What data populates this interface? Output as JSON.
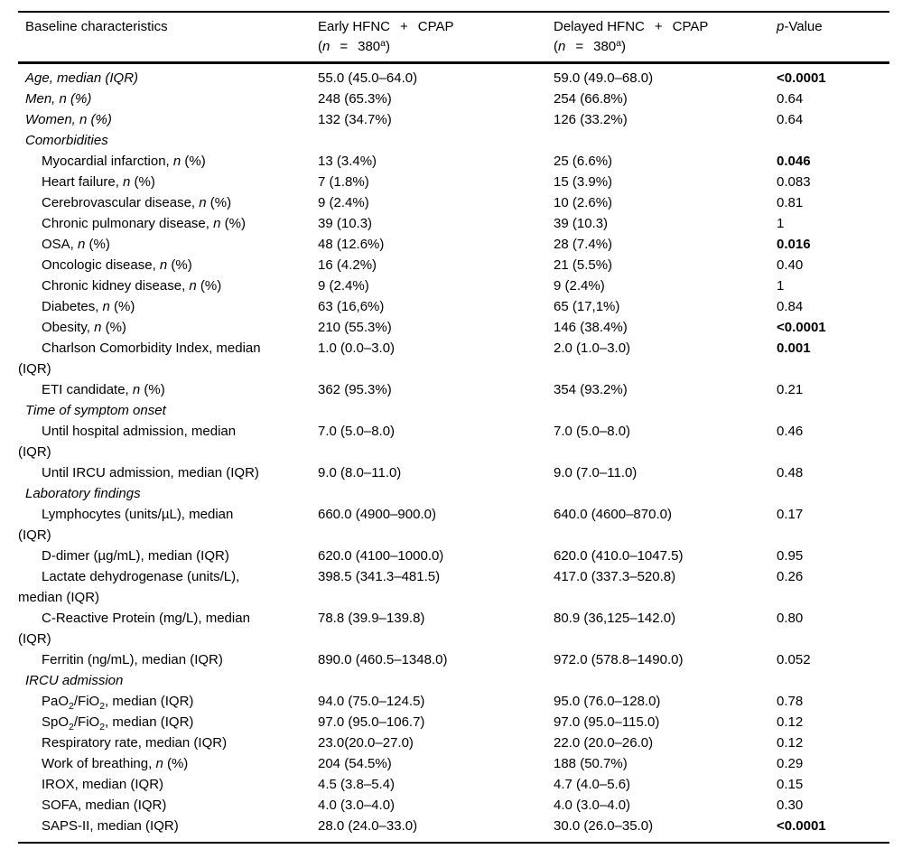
{
  "table": {
    "header": {
      "col1": "Baseline characteristics",
      "col2": {
        "line1": [
          [
            "Early HFNC",
            "r"
          ],
          [
            "+",
            "pad"
          ],
          [
            "CPAP",
            "r"
          ]
        ],
        "line2": [
          [
            "(",
            "r"
          ],
          [
            "n",
            "i"
          ],
          [
            "=",
            "pad"
          ],
          [
            "380",
            "r"
          ],
          [
            "a",
            "sup"
          ],
          [
            ")",
            "r"
          ]
        ]
      },
      "col3": {
        "line1": [
          [
            "Delayed HFNC",
            "r"
          ],
          [
            "+",
            "pad"
          ],
          [
            "CPAP",
            "r"
          ]
        ],
        "line2": [
          [
            "(",
            "r"
          ],
          [
            "n",
            "i"
          ],
          [
            "=",
            "pad"
          ],
          [
            "380",
            "r"
          ],
          [
            "a",
            "sup"
          ],
          [
            ")",
            "r"
          ]
        ]
      },
      "col4": [
        [
          "p",
          "i"
        ],
        [
          "-Value",
          "r"
        ]
      ]
    },
    "rows": [
      {
        "kind": "data",
        "indent": false,
        "label": [
          [
            "Age, median (IQR)",
            "i"
          ]
        ],
        "early": "55.0 (45.0–64.0)",
        "delayed": "59.0 (49.0–68.0)",
        "p": "<0.0001",
        "p_bold": true
      },
      {
        "kind": "data",
        "indent": false,
        "label": [
          [
            "Men, n (%)",
            "i"
          ]
        ],
        "early": "248 (65.3%)",
        "delayed": "254 (66.8%)",
        "p": "0.64",
        "p_bold": false
      },
      {
        "kind": "data",
        "indent": false,
        "label": [
          [
            "Women, n (%)",
            "i"
          ]
        ],
        "early": "132 (34.7%)",
        "delayed": "126 (33.2%)",
        "p": "0.64",
        "p_bold": false
      },
      {
        "kind": "section",
        "label": [
          [
            "Comorbidities",
            "i"
          ]
        ]
      },
      {
        "kind": "data",
        "indent": true,
        "label": [
          [
            "Myocardial infarction, ",
            "r"
          ],
          [
            "n",
            "i"
          ],
          [
            " (%)",
            "r"
          ]
        ],
        "early": "13 (3.4%)",
        "delayed": "25 (6.6%)",
        "p": "0.046",
        "p_bold": true
      },
      {
        "kind": "data",
        "indent": true,
        "label": [
          [
            "Heart failure, ",
            "r"
          ],
          [
            "n",
            "i"
          ],
          [
            " (%)",
            "r"
          ]
        ],
        "early": "7 (1.8%)",
        "delayed": "15 (3.9%)",
        "p": "0.083",
        "p_bold": false
      },
      {
        "kind": "data",
        "indent": true,
        "label": [
          [
            "Cerebrovascular disease, ",
            "r"
          ],
          [
            "n",
            "i"
          ],
          [
            " (%)",
            "r"
          ]
        ],
        "early": "9 (2.4%)",
        "delayed": "10 (2.6%)",
        "p": "0.81",
        "p_bold": false
      },
      {
        "kind": "data",
        "indent": true,
        "label": [
          [
            "Chronic pulmonary disease, ",
            "r"
          ],
          [
            "n",
            "i"
          ],
          [
            " (%)",
            "r"
          ]
        ],
        "early": "39 (10.3)",
        "delayed": "39 (10.3)",
        "p": "1",
        "p_bold": false
      },
      {
        "kind": "data",
        "indent": true,
        "label": [
          [
            "OSA, ",
            "r"
          ],
          [
            "n",
            "i"
          ],
          [
            " (%)",
            "r"
          ]
        ],
        "early": "48 (12.6%)",
        "delayed": "28 (7.4%)",
        "p": "0.016",
        "p_bold": true
      },
      {
        "kind": "data",
        "indent": true,
        "label": [
          [
            "Oncologic disease, ",
            "r"
          ],
          [
            "n",
            "i"
          ],
          [
            " (%)",
            "r"
          ]
        ],
        "early": "16 (4.2%)",
        "delayed": "21 (5.5%)",
        "p": "0.40",
        "p_bold": false
      },
      {
        "kind": "data",
        "indent": true,
        "label": [
          [
            "Chronic kidney disease, ",
            "r"
          ],
          [
            "n",
            "i"
          ],
          [
            " (%)",
            "r"
          ]
        ],
        "early": "9 (2.4%)",
        "delayed": "9 (2.4%)",
        "p": "1",
        "p_bold": false
      },
      {
        "kind": "data",
        "indent": true,
        "label": [
          [
            "Diabetes, ",
            "r"
          ],
          [
            "n",
            "i"
          ],
          [
            " (%)",
            "r"
          ]
        ],
        "early": "63 (16,6%)",
        "delayed": "65 (17,1%)",
        "p": "0.84",
        "p_bold": false
      },
      {
        "kind": "data",
        "indent": true,
        "label": [
          [
            "Obesity, ",
            "r"
          ],
          [
            "n",
            "i"
          ],
          [
            " (%)",
            "r"
          ]
        ],
        "early": "210 (55.3%)",
        "delayed": "146 (38.4%)",
        "p": "<0.0001",
        "p_bold": true
      },
      {
        "kind": "data",
        "indent": true,
        "label": [
          [
            "Charlson Comorbidity Index, median",
            "r"
          ],
          [
            "",
            "br"
          ],
          [
            "(IQR)",
            "r"
          ]
        ],
        "early": "1.0 (0.0–3.0)",
        "delayed": "2.0 (1.0–3.0)",
        "p": "0.001",
        "p_bold": true
      },
      {
        "kind": "data",
        "indent": true,
        "label": [
          [
            "ETI candidate, ",
            "r"
          ],
          [
            "n",
            "i"
          ],
          [
            " (%)",
            "r"
          ]
        ],
        "early": "362 (95.3%)",
        "delayed": "354 (93.2%)",
        "p": "0.21",
        "p_bold": false
      },
      {
        "kind": "section",
        "label": [
          [
            "Time of symptom onset",
            "i"
          ]
        ]
      },
      {
        "kind": "data",
        "indent": true,
        "label": [
          [
            "Until hospital admission, median",
            "r"
          ],
          [
            "",
            "br"
          ],
          [
            "(IQR)",
            "r"
          ]
        ],
        "early": "7.0 (5.0–8.0)",
        "delayed": "7.0 (5.0–8.0)",
        "p": "0.46",
        "p_bold": false
      },
      {
        "kind": "data",
        "indent": true,
        "label": [
          [
            "Until IRCU admission, median (IQR)",
            "r"
          ]
        ],
        "early": "9.0 (8.0–11.0)",
        "delayed": "9.0 (7.0–11.0)",
        "p": "0.48",
        "p_bold": false
      },
      {
        "kind": "section",
        "label": [
          [
            "Laboratory findings",
            "i"
          ]
        ]
      },
      {
        "kind": "data",
        "indent": true,
        "label": [
          [
            "Lymphocytes (units/µL), median",
            "r"
          ],
          [
            "",
            "br"
          ],
          [
            "(IQR)",
            "r"
          ]
        ],
        "early": "660.0 (4900–900.0)",
        "delayed": "640.0 (4600–870.0)",
        "p": "0.17",
        "p_bold": false
      },
      {
        "kind": "data",
        "indent": true,
        "label": [
          [
            "D-dimer (µg/mL), median (IQR)",
            "r"
          ]
        ],
        "early": "620.0 (4100–1000.0)",
        "delayed": "620.0 (410.0–1047.5)",
        "p": "0.95",
        "p_bold": false
      },
      {
        "kind": "data",
        "indent": true,
        "label": [
          [
            "Lactate dehydrogenase (units/L),",
            "r"
          ],
          [
            "",
            "br"
          ],
          [
            "median (IQR)",
            "r"
          ]
        ],
        "early": "398.5 (341.3–481.5)",
        "delayed": "417.0 (337.3–520.8)",
        "p": "0.26",
        "p_bold": false
      },
      {
        "kind": "data",
        "indent": true,
        "label": [
          [
            "C-Reactive Protein (mg/L), median",
            "r"
          ],
          [
            "",
            "br"
          ],
          [
            "(IQR)",
            "r"
          ]
        ],
        "early": "78.8 (39.9–139.8)",
        "delayed": "80.9 (36,125–142.0)",
        "p": "0.80",
        "p_bold": false
      },
      {
        "kind": "data",
        "indent": true,
        "label": [
          [
            "Ferritin (ng/mL), median (IQR)",
            "r"
          ]
        ],
        "early": "890.0 (460.5–1348.0)",
        "delayed": "972.0 (578.8–1490.0)",
        "p": "0.052",
        "p_bold": false
      },
      {
        "kind": "section",
        "label": [
          [
            "IRCU admission",
            "i"
          ]
        ]
      },
      {
        "kind": "data",
        "indent": true,
        "label": [
          [
            "PaO",
            "r"
          ],
          [
            "2",
            "sub"
          ],
          [
            "/FiO",
            "r"
          ],
          [
            "2",
            "sub"
          ],
          [
            ", median (IQR)",
            "r"
          ]
        ],
        "early": "94.0 (75.0–124.5)",
        "delayed": "95.0 (76.0–128.0)",
        "p": "0.78",
        "p_bold": false
      },
      {
        "kind": "data",
        "indent": true,
        "label": [
          [
            "SpO",
            "r"
          ],
          [
            "2",
            "sub"
          ],
          [
            "/FiO",
            "r"
          ],
          [
            "2",
            "sub"
          ],
          [
            ", median (IQR)",
            "r"
          ]
        ],
        "early": "97.0 (95.0–106.7)",
        "delayed": "97.0 (95.0–115.0)",
        "p": "0.12",
        "p_bold": false
      },
      {
        "kind": "data",
        "indent": true,
        "label": [
          [
            "Respiratory rate, median (IQR)",
            "r"
          ]
        ],
        "early": "23.0(20.0–27.0)",
        "delayed": "22.0 (20.0–26.0)",
        "p": "0.12",
        "p_bold": false
      },
      {
        "kind": "data",
        "indent": true,
        "label": [
          [
            "Work of breathing, ",
            "r"
          ],
          [
            "n",
            "i"
          ],
          [
            " (%)",
            "r"
          ]
        ],
        "early": "204 (54.5%)",
        "delayed": "188 (50.7%)",
        "p": "0.29",
        "p_bold": false
      },
      {
        "kind": "data",
        "indent": true,
        "label": [
          [
            "IROX, median (IQR)",
            "r"
          ]
        ],
        "early": "4.5 (3.8–5.4)",
        "delayed": "4.7 (4.0–5.6)",
        "p": "0.15",
        "p_bold": false
      },
      {
        "kind": "data",
        "indent": true,
        "label": [
          [
            "SOFA, median (IQR)",
            "r"
          ]
        ],
        "early": "4.0 (3.0–4.0)",
        "delayed": "4.0 (3.0–4.0)",
        "p": "0.30",
        "p_bold": false
      },
      {
        "kind": "data",
        "indent": true,
        "label": [
          [
            "SAPS-II, median (IQR)",
            "r"
          ]
        ],
        "early": "28.0 (24.0–33.0)",
        "delayed": "30.0 (26.0–35.0)",
        "p": "<0.0001",
        "p_bold": true
      }
    ]
  }
}
